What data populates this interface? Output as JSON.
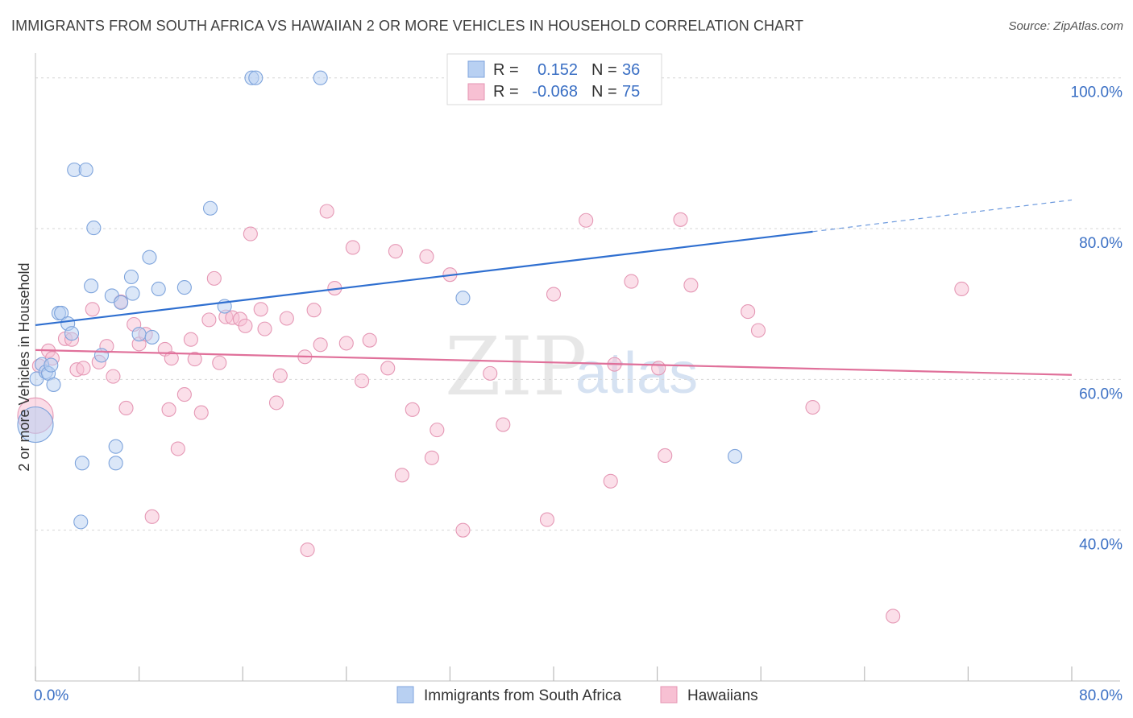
{
  "title": "IMMIGRANTS FROM SOUTH AFRICA VS HAWAIIAN 2 OR MORE VEHICLES IN HOUSEHOLD CORRELATION CHART",
  "source": "Source: ZipAtlas.com",
  "watermark": {
    "zip": "ZIP",
    "atlas": "atlas"
  },
  "colors": {
    "blue": "#3a6fc4",
    "blue_fill": "#b8d0f2",
    "blue_line": "#2f6fd0",
    "pink": "#e06090",
    "pink_fill": "#f7c0d3",
    "pink_line": "#e0709a"
  },
  "legend": {
    "r_label": "R =",
    "n_label": "N =",
    "rows": [
      {
        "r": "0.152",
        "n": "36"
      },
      {
        "r": "-0.068",
        "n": "75"
      }
    ]
  },
  "chart_data": {
    "type": "scatter",
    "title": "IMMIGRANTS FROM SOUTH AFRICA VS HAWAIIAN 2 OR MORE VEHICLES IN HOUSEHOLD CORRELATION CHART",
    "xlabel": "",
    "ylabel": "2 or more Vehicles in Household",
    "xlim": [
      0,
      80
    ],
    "ylim": [
      20,
      102
    ],
    "x_tick_labels": [
      "0.0%",
      "80.0%"
    ],
    "y_ticks": [
      40,
      60,
      80,
      100
    ],
    "y_tick_labels": [
      "40.0%",
      "60.0%",
      "80.0%",
      "100.0%"
    ],
    "series": [
      {
        "name": "Immigrants from South Africa",
        "trend": {
          "x0": 0,
          "y0": 67.2,
          "x1": 60,
          "y1": 79.6,
          "x_end": 80,
          "y_end": 83.8
        },
        "points": [
          [
            0.1,
            60.1
          ],
          [
            0.5,
            62.0
          ],
          [
            0.8,
            61.0
          ],
          [
            1.0,
            60.8
          ],
          [
            1.2,
            61.9
          ],
          [
            1.4,
            59.3
          ],
          [
            1.8,
            68.8
          ],
          [
            2.0,
            68.8
          ],
          [
            2.5,
            67.4
          ],
          [
            2.8,
            66.1
          ],
          [
            3.0,
            87.8
          ],
          [
            3.9,
            87.8
          ],
          [
            4.3,
            72.4
          ],
          [
            4.5,
            80.1
          ],
          [
            5.1,
            63.2
          ],
          [
            5.9,
            71.1
          ],
          [
            6.6,
            70.2
          ],
          [
            7.4,
            73.6
          ],
          [
            7.5,
            71.4
          ],
          [
            8.0,
            66.0
          ],
          [
            8.8,
            76.2
          ],
          [
            9.0,
            65.6
          ],
          [
            9.5,
            72.0
          ],
          [
            11.5,
            72.2
          ],
          [
            13.5,
            82.7
          ],
          [
            14.6,
            69.7
          ],
          [
            16.7,
            100.0
          ],
          [
            17.0,
            100.0
          ],
          [
            22.0,
            100.0
          ],
          [
            33.0,
            70.8
          ],
          [
            54.0,
            49.8
          ],
          [
            3.6,
            48.9
          ],
          [
            6.2,
            48.9
          ],
          [
            6.2,
            51.1
          ],
          [
            3.5,
            41.1
          ],
          [
            0.0,
            54.0
          ]
        ]
      },
      {
        "name": "Hawaiians",
        "trend": {
          "x0": 0,
          "y0": 63.9,
          "x1": 80,
          "y1": 60.6
        },
        "points": [
          [
            0.3,
            61.8
          ],
          [
            1.0,
            63.8
          ],
          [
            1.3,
            62.8
          ],
          [
            2.3,
            65.4
          ],
          [
            2.8,
            65.3
          ],
          [
            3.2,
            61.3
          ],
          [
            3.7,
            61.5
          ],
          [
            4.4,
            69.3
          ],
          [
            4.9,
            62.3
          ],
          [
            5.5,
            64.4
          ],
          [
            6.0,
            60.4
          ],
          [
            6.6,
            70.3
          ],
          [
            7.0,
            56.2
          ],
          [
            7.6,
            67.3
          ],
          [
            8.0,
            64.7
          ],
          [
            8.5,
            66.0
          ],
          [
            10.0,
            64.0
          ],
          [
            10.3,
            56.0
          ],
          [
            10.5,
            62.8
          ],
          [
            11.0,
            50.8
          ],
          [
            11.5,
            58.0
          ],
          [
            12.0,
            65.3
          ],
          [
            12.3,
            62.7
          ],
          [
            12.8,
            55.6
          ],
          [
            13.4,
            67.9
          ],
          [
            13.8,
            73.4
          ],
          [
            14.2,
            62.2
          ],
          [
            14.7,
            68.3
          ],
          [
            15.2,
            68.2
          ],
          [
            15.8,
            68.0
          ],
          [
            16.2,
            67.1
          ],
          [
            16.6,
            79.3
          ],
          [
            17.4,
            69.3
          ],
          [
            17.7,
            66.7
          ],
          [
            18.6,
            56.9
          ],
          [
            18.9,
            60.5
          ],
          [
            19.4,
            68.1
          ],
          [
            20.8,
            63.0
          ],
          [
            21.5,
            69.2
          ],
          [
            22.0,
            64.6
          ],
          [
            22.5,
            82.3
          ],
          [
            23.1,
            72.1
          ],
          [
            24.0,
            64.8
          ],
          [
            24.5,
            77.5
          ],
          [
            25.2,
            59.8
          ],
          [
            25.8,
            65.2
          ],
          [
            27.2,
            61.5
          ],
          [
            27.8,
            77.0
          ],
          [
            28.3,
            47.3
          ],
          [
            29.1,
            56.0
          ],
          [
            30.2,
            76.3
          ],
          [
            30.6,
            49.6
          ],
          [
            31.0,
            53.3
          ],
          [
            32.0,
            73.9
          ],
          [
            33.0,
            40.0
          ],
          [
            35.1,
            60.8
          ],
          [
            36.1,
            54.0
          ],
          [
            39.5,
            41.4
          ],
          [
            40.0,
            71.3
          ],
          [
            42.5,
            81.1
          ],
          [
            44.4,
            46.5
          ],
          [
            44.7,
            62.0
          ],
          [
            46.0,
            73.0
          ],
          [
            48.1,
            61.5
          ],
          [
            48.6,
            49.9
          ],
          [
            49.8,
            81.2
          ],
          [
            50.6,
            72.5
          ],
          [
            55.0,
            69.0
          ],
          [
            55.8,
            66.5
          ],
          [
            21.0,
            37.4
          ],
          [
            9.0,
            41.8
          ],
          [
            60.0,
            56.3
          ],
          [
            66.2,
            28.6
          ],
          [
            71.5,
            72.0
          ],
          [
            0.0,
            55.2
          ]
        ]
      }
    ]
  }
}
